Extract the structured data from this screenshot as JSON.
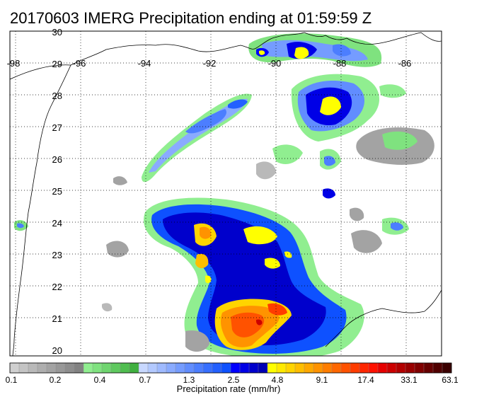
{
  "title": "20170603 IMERG Precipitation ending at 01:59:59 Z",
  "map": {
    "lat_labels": [
      "30",
      "29",
      "28",
      "27",
      "26",
      "25",
      "24",
      "23",
      "22",
      "21",
      "20"
    ],
    "lon_labels": [
      "-98",
      "-96",
      "-94",
      "-92",
      "-90",
      "-88",
      "-86"
    ]
  },
  "colorbar": {
    "title": "Precipitation rate (mm/hr)",
    "tick_labels": [
      "0.1",
      "0.2",
      "0.4",
      "0.7",
      "1.3",
      "2.5",
      "4.8",
      "9.1",
      "17.4",
      "33.1",
      "63.1"
    ],
    "colors": [
      "#cfcfcf",
      "#c4c4c4",
      "#b9b9b9",
      "#aeaeae",
      "#a3a3a3",
      "#989898",
      "#8d8d8d",
      "#828282",
      "#90ee90",
      "#7fe27f",
      "#6fd56f",
      "#5fc95f",
      "#4fbd4f",
      "#40b040",
      "#c8d8ff",
      "#b3c9ff",
      "#9fbaff",
      "#8aabff",
      "#759cff",
      "#618dff",
      "#4c7eff",
      "#376fff",
      "#2360ff",
      "#0e51ff",
      "#0000ff",
      "#0000e6",
      "#0000cc",
      "#0000b3",
      "#ffff00",
      "#ffe900",
      "#ffd400",
      "#ffbe00",
      "#ffa800",
      "#ff9300",
      "#ff7d00",
      "#ff6700",
      "#ff5200",
      "#ff3c00",
      "#ff2600",
      "#ff1100",
      "#e60000",
      "#cc0000",
      "#b30000",
      "#990000",
      "#800000",
      "#660000",
      "#500000",
      "#3a0000"
    ]
  }
}
